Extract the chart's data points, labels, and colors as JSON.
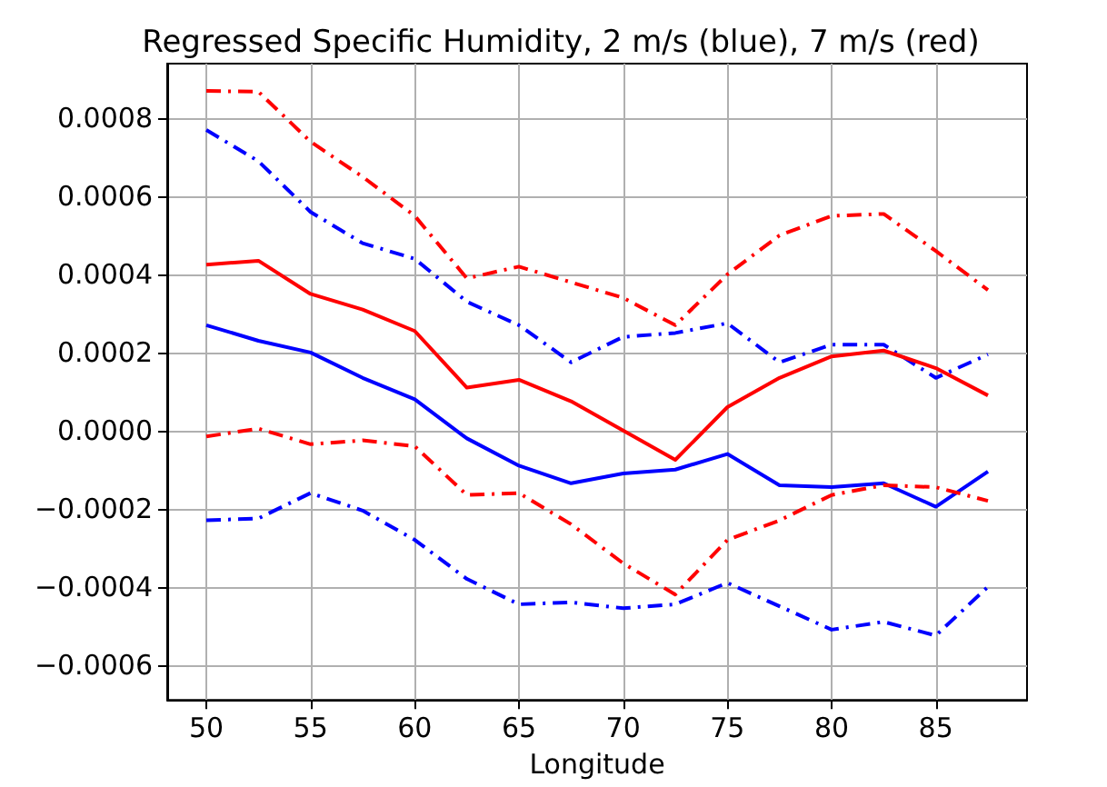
{
  "chart_data": {
    "type": "line",
    "title": "Regressed Specific Humidity, 2 m/s (blue), 7 m/s (red)",
    "xlabel": "Longitude",
    "x": [
      50,
      52.5,
      55,
      57.5,
      60,
      62.5,
      65,
      67.5,
      70,
      72.5,
      75,
      77.5,
      80,
      82.5,
      85,
      87.5
    ],
    "series": [
      {
        "color": "#ff0000",
        "line_style": "dashdot",
        "values": [
          0.00087,
          0.000868,
          0.00074,
          0.00065,
          0.00055,
          0.00039,
          0.00042,
          0.00038,
          0.00034,
          0.00027,
          0.0004,
          0.0005,
          0.00055,
          0.000555,
          0.00046,
          0.00036
        ]
      },
      {
        "color": "#0000ff",
        "line_style": "dashdot",
        "values": [
          0.00077,
          0.00069,
          0.00056,
          0.00048,
          0.00044,
          0.00033,
          0.00027,
          0.000175,
          0.00024,
          0.00025,
          0.000275,
          0.000175,
          0.00022,
          0.00022,
          0.000135,
          0.000195
        ]
      },
      {
        "color": "#ff0000",
        "line_style": "solid",
        "values": [
          0.000425,
          0.000435,
          0.00035,
          0.00031,
          0.000255,
          0.00011,
          0.00013,
          7.5e-05,
          0.0,
          -7.5e-05,
          6e-05,
          0.000135,
          0.00019,
          0.000205,
          0.00016,
          9e-05
        ]
      },
      {
        "color": "#0000ff",
        "line_style": "solid",
        "values": [
          0.00027,
          0.00023,
          0.0002,
          0.000135,
          8e-05,
          -2e-05,
          -9e-05,
          -0.000135,
          -0.00011,
          -0.0001,
          -6e-05,
          -0.00014,
          -0.000145,
          -0.000135,
          -0.000195,
          -0.000105
        ]
      },
      {
        "color": "#ff0000",
        "line_style": "dashdot",
        "values": [
          -1.5e-05,
          5e-06,
          -3.5e-05,
          -2.5e-05,
          -4e-05,
          -0.000165,
          -0.00016,
          -0.00024,
          -0.00034,
          -0.00042,
          -0.00028,
          -0.00023,
          -0.000165,
          -0.00014,
          -0.000145,
          -0.00018
        ]
      },
      {
        "color": "#0000ff",
        "line_style": "dashdot",
        "values": [
          -0.00023,
          -0.000225,
          -0.00016,
          -0.000205,
          -0.00028,
          -0.00038,
          -0.000445,
          -0.00044,
          -0.000455,
          -0.000445,
          -0.00039,
          -0.00045,
          -0.00051,
          -0.00049,
          -0.000525,
          -0.0004
        ]
      }
    ],
    "xlim": [
      48.125,
      89.375
    ],
    "xticks": [
      50,
      55,
      60,
      65,
      70,
      75,
      80,
      85
    ],
    "ylim": [
      -0.00069,
      0.00094
    ],
    "yticks": [
      {
        "value": -0.0006,
        "label": "−0.0006"
      },
      {
        "value": -0.0004,
        "label": "−0.0004"
      },
      {
        "value": -0.0002,
        "label": "−0.0002"
      },
      {
        "value": 0,
        "label": "0.0000"
      },
      {
        "value": 0.0002,
        "label": "0.0002"
      },
      {
        "value": 0.0004,
        "label": "0.0004"
      },
      {
        "value": 0.0006,
        "label": "0.0006"
      },
      {
        "value": 0.0008,
        "label": "0.0008"
      }
    ],
    "grid": true,
    "marker": "none"
  }
}
